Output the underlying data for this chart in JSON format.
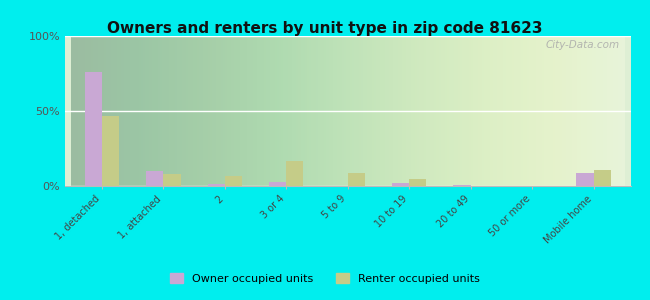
{
  "title": "Owners and renters by unit type in zip code 81623",
  "categories": [
    "1, detached",
    "1, attached",
    "2",
    "3 or 4",
    "5 to 9",
    "10 to 19",
    "20 to 49",
    "50 or more",
    "Mobile home"
  ],
  "owner_values": [
    76,
    10,
    1.5,
    3,
    0,
    2,
    0.5,
    0.3,
    9
  ],
  "renter_values": [
    47,
    8,
    7,
    17,
    9,
    5,
    0,
    0,
    11
  ],
  "owner_color": "#c9a8d4",
  "renter_color": "#c5cc88",
  "outer_bg": "#00eeee",
  "plot_bg_color": "#e8f2e0",
  "ylim": [
    0,
    100
  ],
  "yticks": [
    0,
    50,
    100
  ],
  "ytick_labels": [
    "0%",
    "50%",
    "100%"
  ],
  "title_fontsize": 11,
  "watermark": "City-Data.com",
  "legend_owner": "Owner occupied units",
  "legend_renter": "Renter occupied units"
}
